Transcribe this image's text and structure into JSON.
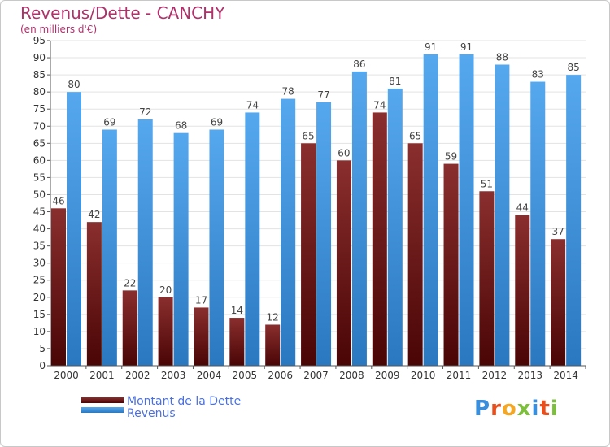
{
  "chart_data": {
    "type": "bar",
    "title": "Revenus/Dette - CANCHY",
    "subtitle": "(en milliers d'€)",
    "categories": [
      "2000",
      "2001",
      "2002",
      "2003",
      "2004",
      "2005",
      "2006",
      "2007",
      "2008",
      "2009",
      "2010",
      "2011",
      "2012",
      "2013",
      "2014"
    ],
    "series": [
      {
        "name": "Montant de la Dette",
        "color": "#6e1a1a",
        "values": [
          46,
          42,
          22,
          20,
          17,
          14,
          12,
          65,
          60,
          74,
          65,
          59,
          51,
          44,
          37
        ]
      },
      {
        "name": "Revenus",
        "color": "#3a8fdc",
        "values": [
          80,
          69,
          72,
          68,
          69,
          74,
          78,
          77,
          86,
          81,
          91,
          91,
          88,
          83,
          85
        ]
      }
    ],
    "ylim": [
      0,
      95
    ],
    "ytick_step": 5,
    "grid": true,
    "legend_position": "bottom-left"
  },
  "branding": {
    "logo_text": "Proxiti",
    "logo_colors": [
      "#3a8fdc",
      "#e84f1c",
      "#f5a623",
      "#7bbf3a",
      "#3a8fdc",
      "#e84f1c",
      "#7bbf3a"
    ]
  }
}
